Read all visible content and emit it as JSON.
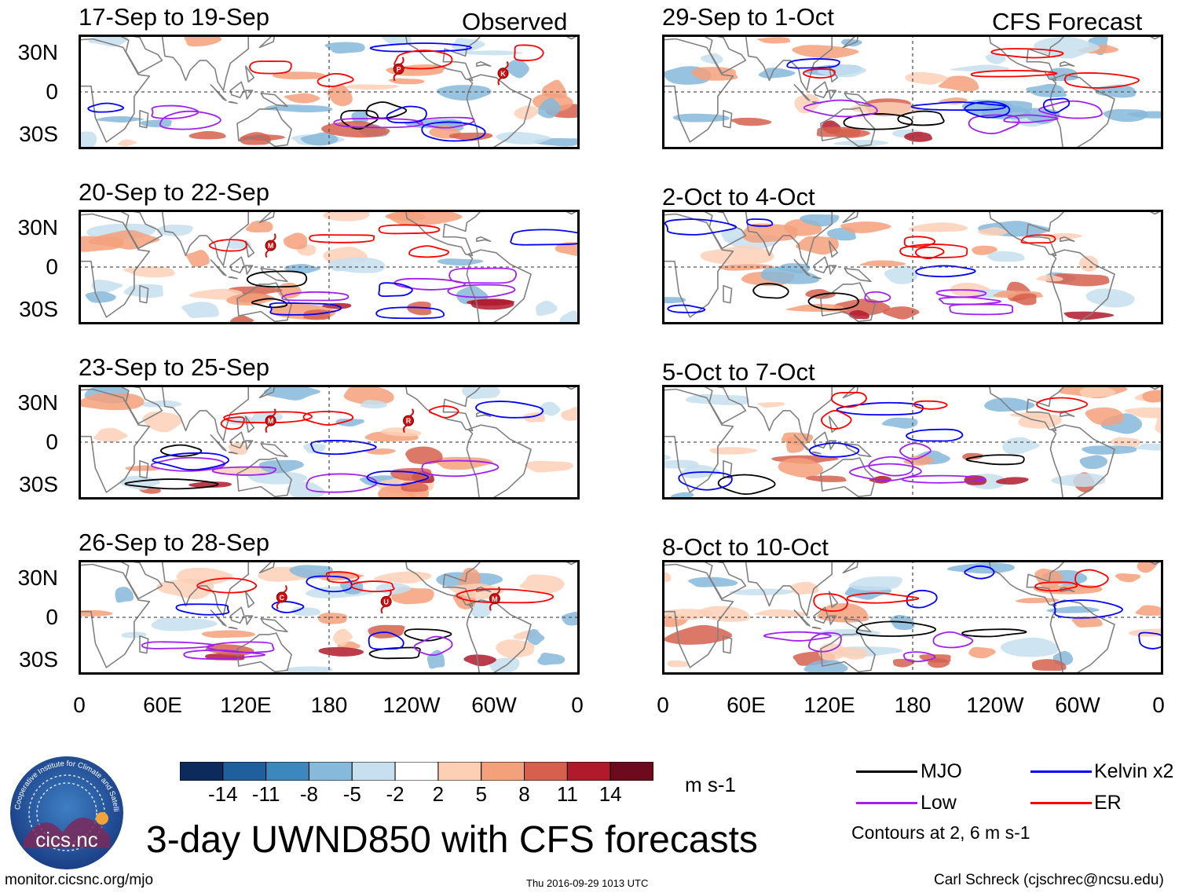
{
  "header": {
    "left_label": "Observed",
    "right_label": "CFS Forecast"
  },
  "panels": [
    {
      "title": "17-Sep to 19-Sep",
      "kind": "observed",
      "storms": [
        {
          "lon": 230,
          "lat": 16,
          "letter": "P"
        },
        {
          "lon": 305,
          "lat": 13,
          "letter": "K"
        }
      ]
    },
    {
      "title": "20-Sep to 22-Sep",
      "kind": "observed",
      "storms": [
        {
          "lon": 138,
          "lat": 15,
          "letter": "M"
        }
      ]
    },
    {
      "title": "23-Sep to 25-Sep",
      "kind": "observed",
      "storms": [
        {
          "lon": 138,
          "lat": 15,
          "letter": "M"
        },
        {
          "lon": 237,
          "lat": 15,
          "letter": "R"
        }
      ]
    },
    {
      "title": "26-Sep to 28-Sep",
      "kind": "observed",
      "storms": [
        {
          "lon": 146,
          "lat": 14,
          "letter": "C"
        },
        {
          "lon": 221,
          "lat": 11,
          "letter": "U"
        },
        {
          "lon": 299,
          "lat": 13,
          "letter": "M"
        }
      ]
    },
    {
      "title": "29-Sep to 1-Oct",
      "kind": "forecast",
      "storms": []
    },
    {
      "title": "2-Oct to 4-Oct",
      "kind": "forecast",
      "storms": []
    },
    {
      "title": "5-Oct to 7-Oct",
      "kind": "forecast",
      "storms": []
    },
    {
      "title": "8-Oct to 10-Oct",
      "kind": "forecast",
      "storms": []
    }
  ],
  "chart_data": {
    "type": "heatmap",
    "title": "3-day UWND850 with CFS forecasts",
    "variable": "850-hPa zonal wind anomaly",
    "x_axis": {
      "labels": [
        "0",
        "60E",
        "120E",
        "180",
        "120W",
        "60W",
        "0"
      ],
      "lon_range": [
        0,
        360
      ]
    },
    "y_axis": {
      "labels": [
        "30N",
        "0",
        "30S"
      ],
      "lat_range": [
        -40,
        40
      ]
    },
    "colorbar": {
      "ticks": [
        "-14",
        "-11",
        "-8",
        "-5",
        "-2",
        "2",
        "5",
        "8",
        "11",
        "14"
      ],
      "colors": [
        "#0d2a5c",
        "#1f5f9e",
        "#3c87be",
        "#86b9da",
        "#c7dfef",
        "#ffffff",
        "#fdd0b6",
        "#f4a07b",
        "#d6604d",
        "#b01a2b",
        "#6e0a1e"
      ],
      "units": "m s-1"
    },
    "contours": {
      "note": "Contours at 2, 6 m s-1",
      "series": [
        {
          "name": "MJO",
          "color": "#000000"
        },
        {
          "name": "Low",
          "color": "#a020f0"
        },
        {
          "name": "Kelvin x2",
          "color": "#0000ff"
        },
        {
          "name": "ER",
          "color": "#ff0000"
        }
      ]
    }
  },
  "footer": {
    "logo_text": "cics.nc",
    "logo_ring": "Cooperative Institute for Climate and Satellites",
    "url": "monitor.cicsnc.org/mjo",
    "timestamp": "Thu 2016-09-29 1013 UTC",
    "author": "Carl Schreck (cjschrec@ncsu.edu)"
  }
}
